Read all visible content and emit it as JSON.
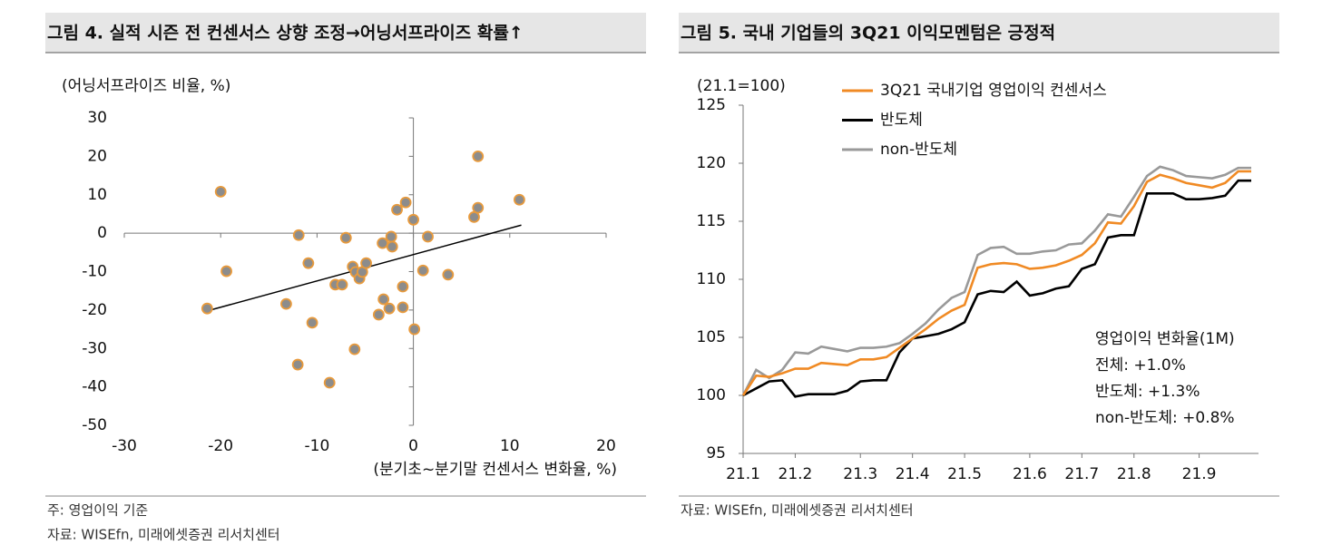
{
  "chart_data": [
    {
      "type": "scatter",
      "title": "그림 4. 실적 시즌 전 컨센서스 상향 조정→어닝서프라이즈 확률↑",
      "y_label": "(어닝서프라이즈 비율, %)",
      "x_label": "(분기초~분기말 컨센서스 변화율, %)",
      "xlim": [
        -30,
        20
      ],
      "xticks": [
        -30,
        -20,
        -10,
        0,
        10,
        20
      ],
      "ylim": [
        -50,
        30
      ],
      "yticks": [
        30,
        20,
        10,
        0,
        -10,
        -20,
        -30,
        -40,
        -50
      ],
      "color": "#8c8c8c",
      "edge_color": "#e89a3c",
      "x": [
        -20.0,
        -19.4,
        -21.4,
        -11.9,
        -10.9,
        -13.2,
        -10.5,
        -12.0,
        -8.7,
        -6.1,
        -7.0,
        -8.1,
        -7.4,
        -6.3,
        -6.0,
        -5.6,
        -5.3,
        -4.9,
        -3.2,
        -2.3,
        -2.2,
        -1.7,
        -0.8,
        0.0,
        -3.1,
        -2.5,
        -3.6,
        -1.1,
        -1.1,
        0.1,
        1.5,
        1.0,
        3.6,
        6.3,
        6.7,
        6.7,
        11.0
      ],
      "y": [
        10.8,
        -9.9,
        -19.6,
        -0.5,
        -7.8,
        -18.4,
        -23.3,
        -34.2,
        -38.9,
        -30.2,
        -1.2,
        -13.4,
        -13.4,
        -8.7,
        -10.1,
        -11.8,
        -10.1,
        -7.8,
        -2.6,
        -0.9,
        -3.5,
        6.1,
        8.0,
        3.5,
        -17.2,
        -19.6,
        -21.2,
        -13.9,
        -19.3,
        -25.0,
        -0.9,
        -9.7,
        -10.8,
        4.2,
        6.6,
        20.0,
        8.7
      ],
      "trendline": {
        "x": [
          -21.5,
          11.2
        ],
        "y": [
          -20.3,
          2.1
        ],
        "color": "#000000"
      },
      "notes": [
        "주: 영업이익 기준",
        "자료: WISEfn, 미래에셋증권 리서치센터"
      ]
    },
    {
      "type": "line",
      "title": "그림 5. 국내 기업들의 3Q21 이익모멘텀은 긍정적",
      "y_label": "(21.1=100)",
      "ylim": [
        95,
        125
      ],
      "yticks": [
        125,
        120,
        115,
        110,
        105,
        100,
        95
      ],
      "categories": [
        "21.1",
        null,
        null,
        null,
        "21.2",
        null,
        null,
        null,
        null,
        "21.3",
        null,
        null,
        null,
        "21.4",
        null,
        null,
        null,
        "21.5",
        null,
        null,
        null,
        null,
        "21.6",
        null,
        null,
        null,
        "21.7",
        null,
        null,
        null,
        "21.8",
        null,
        null,
        null,
        null,
        "21.9",
        null,
        null,
        null,
        null
      ],
      "series": [
        {
          "name": "3Q21 국내기업 영업이익 컨센서스",
          "color": "#f08a24",
          "values": [
            100,
            101.7,
            101.6,
            101.9,
            102.3,
            102.3,
            102.8,
            102.7,
            102.6,
            103.1,
            103.1,
            103.3,
            104.1,
            104.9,
            105.7,
            106.6,
            107.3,
            107.8,
            111.0,
            111.3,
            111.4,
            111.3,
            110.9,
            111.0,
            111.2,
            111.6,
            112.1,
            113.1,
            114.9,
            114.8,
            116.3,
            118.4,
            119.0,
            118.7,
            118.3,
            118.1,
            117.9,
            118.3,
            119.3,
            119.3
          ]
        },
        {
          "name": "반도체",
          "color": "#000000",
          "values": [
            100,
            100.6,
            101.2,
            101.3,
            99.9,
            100.1,
            100.1,
            100.1,
            100.4,
            101.2,
            101.3,
            101.3,
            103.7,
            104.9,
            105.1,
            105.3,
            105.7,
            106.3,
            108.7,
            109.0,
            108.9,
            109.8,
            108.6,
            108.8,
            109.2,
            109.4,
            110.9,
            111.3,
            113.6,
            113.8,
            113.8,
            117.4,
            117.4,
            117.4,
            116.9,
            116.9,
            117.0,
            117.2,
            118.5,
            118.5
          ]
        },
        {
          "name": "non-반도체",
          "color": "#999999",
          "values": [
            100,
            102.2,
            101.5,
            102.2,
            103.7,
            103.6,
            104.2,
            104.0,
            103.8,
            104.1,
            104.1,
            104.2,
            104.5,
            105.3,
            106.2,
            107.4,
            108.4,
            108.9,
            112.1,
            112.7,
            112.8,
            112.2,
            112.2,
            112.4,
            112.5,
            113.0,
            113.1,
            114.2,
            115.6,
            115.4,
            117.1,
            118.9,
            119.7,
            119.4,
            118.9,
            118.8,
            118.7,
            119.0,
            119.6,
            119.6
          ]
        }
      ],
      "annotations": [
        "영업이익 변화율(1M)",
        "전체: +1.0%",
        "반도체: +1.3%",
        "non-반도체: +0.8%"
      ],
      "notes": [
        "자료: WISEfn, 미래에셋증권 리서치센터"
      ]
    }
  ]
}
